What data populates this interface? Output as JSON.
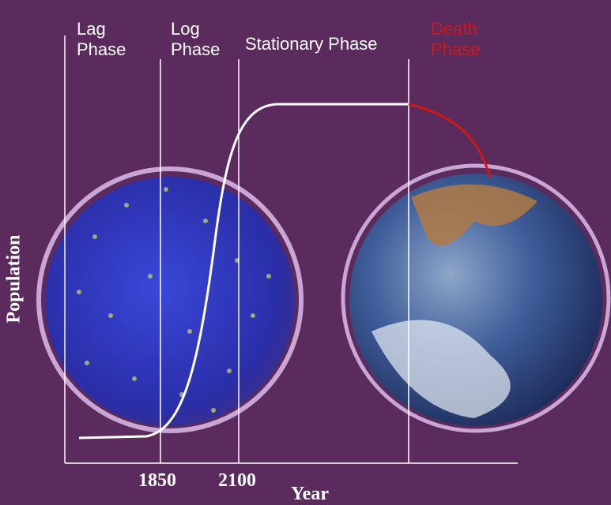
{
  "phases": [
    {
      "label": "Lag Phase"
    },
    {
      "label": "Log Phase"
    },
    {
      "label": "Stationary Phase"
    },
    {
      "label": "Death Phase"
    }
  ],
  "axes": {
    "y_title": "Population",
    "x_title": "Year",
    "x_ticks": [
      "1850",
      "2100"
    ]
  }
}
